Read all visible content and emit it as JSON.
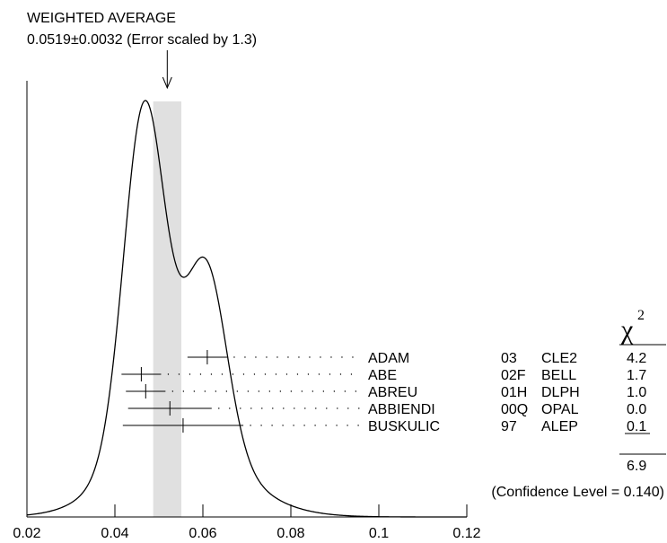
{
  "chart_data": {
    "type": "ideogram",
    "title": "WEIGHTED AVERAGE",
    "subtitle": "0.0519±0.0032 (Error scaled by 1.3)",
    "average": {
      "value": 0.0519,
      "error": 0.0032
    },
    "xlim": [
      0.02,
      0.12
    ],
    "xticks": [
      "0.02",
      "0.04",
      "0.06",
      "0.08",
      "0.1",
      "0.12"
    ],
    "chi2_header": "χ",
    "chi2_header_exp": "2",
    "measurements": [
      {
        "author": "ADAM",
        "year": "03",
        "experiment": "CLE2",
        "value": 0.061,
        "error": 0.0045,
        "chi2": "4.2"
      },
      {
        "author": "ABE",
        "year": "02F",
        "experiment": "BELL",
        "value": 0.046,
        "error": 0.0045,
        "chi2": "1.7"
      },
      {
        "author": "ABREU",
        "year": "01H",
        "experiment": "DLPH",
        "value": 0.047,
        "error": 0.0045,
        "chi2": "1.0"
      },
      {
        "author": "ABBIENDI",
        "year": "00Q",
        "experiment": "OPAL",
        "value": 0.0525,
        "error": 0.0095,
        "chi2": "0.0"
      },
      {
        "author": "BUSKULIC",
        "year": "97",
        "experiment": "ALEP",
        "value": 0.0555,
        "error": 0.0137,
        "chi2": "0.1"
      }
    ],
    "chi2_total": "6.9",
    "confidence_level": "(Confidence Level = 0.140)"
  }
}
